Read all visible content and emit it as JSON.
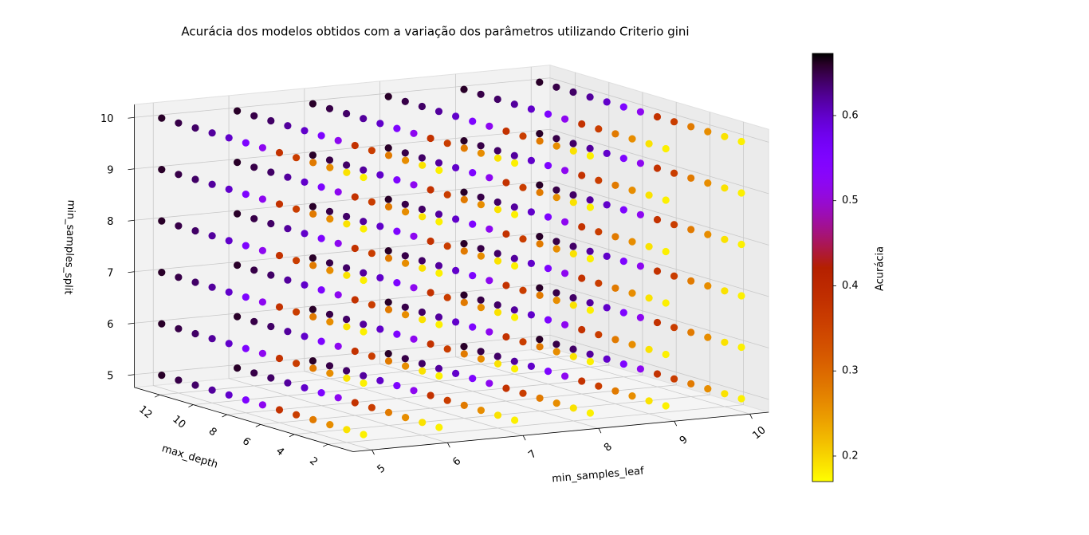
{
  "chart_data": {
    "type": "scatter3d",
    "title": "Acurácia dos modelos obtidos com a variação dos parâmetros utilizando Criterio gini",
    "xlabel": "min_samples_leaf",
    "ylabel": "max_depth",
    "zlabel": "min_samples_split",
    "colorbar_label": "Acurácia",
    "colormap": "gnuplot_r",
    "x": [
      5,
      6,
      7,
      8,
      9,
      10
    ],
    "y": [
      1,
      2,
      3,
      4,
      5,
      6,
      7,
      8,
      9,
      10,
      11,
      12,
      13
    ],
    "z": [
      5,
      6,
      7,
      8,
      9,
      10
    ],
    "xlim": [
      4.75,
      10.25
    ],
    "ylim": [
      0.5,
      13.5
    ],
    "zlim": [
      4.75,
      10.25
    ],
    "xticks": [
      5,
      6,
      7,
      8,
      9,
      10
    ],
    "yticks": [
      2,
      4,
      6,
      8,
      10,
      12
    ],
    "zticks": [
      5,
      6,
      7,
      8,
      9,
      10
    ],
    "clim": [
      0.17,
      0.673
    ],
    "cticks": [
      0.2,
      0.3,
      0.4,
      0.5,
      0.6
    ],
    "grid": true,
    "values": [
      [
        [
          0.18,
          0.19,
          0.26,
          0.28,
          0.36,
          0.38,
          0.52,
          0.55,
          0.6,
          0.62,
          0.64,
          0.65,
          0.66
        ],
        [
          0.18,
          0.19,
          0.26,
          0.28,
          0.36,
          0.38,
          0.52,
          0.55,
          0.6,
          0.62,
          0.64,
          0.65,
          0.66
        ],
        [
          0.18,
          0.19,
          0.26,
          0.28,
          0.36,
          0.38,
          0.52,
          0.55,
          0.6,
          0.62,
          0.64,
          0.65,
          0.66
        ],
        [
          0.18,
          0.19,
          0.26,
          0.28,
          0.36,
          0.38,
          0.52,
          0.55,
          0.6,
          0.62,
          0.64,
          0.65,
          0.66
        ],
        [
          0.18,
          0.19,
          0.26,
          0.28,
          0.36,
          0.38,
          0.52,
          0.55,
          0.6,
          0.62,
          0.64,
          0.65,
          0.66
        ],
        [
          0.18,
          0.19,
          0.26,
          0.28,
          0.36,
          0.38,
          0.52,
          0.55,
          0.6,
          0.62,
          0.64,
          0.65,
          0.66
        ]
      ],
      [
        [
          0.18,
          0.19,
          0.26,
          0.28,
          0.36,
          0.38,
          0.52,
          0.55,
          0.6,
          0.62,
          0.64,
          0.65,
          0.66
        ],
        [
          0.18,
          0.19,
          0.26,
          0.28,
          0.36,
          0.38,
          0.52,
          0.55,
          0.6,
          0.62,
          0.64,
          0.65,
          0.66
        ],
        [
          0.18,
          0.19,
          0.26,
          0.28,
          0.36,
          0.38,
          0.52,
          0.55,
          0.6,
          0.62,
          0.64,
          0.65,
          0.66
        ],
        [
          0.18,
          0.19,
          0.26,
          0.28,
          0.36,
          0.38,
          0.52,
          0.55,
          0.6,
          0.62,
          0.64,
          0.65,
          0.66
        ],
        [
          0.18,
          0.19,
          0.26,
          0.28,
          0.36,
          0.38,
          0.52,
          0.55,
          0.6,
          0.62,
          0.64,
          0.65,
          0.66
        ],
        [
          0.18,
          0.19,
          0.26,
          0.28,
          0.36,
          0.38,
          0.52,
          0.55,
          0.6,
          0.62,
          0.64,
          0.65,
          0.66
        ]
      ],
      [
        [
          0.18,
          0.19,
          0.26,
          0.28,
          0.36,
          0.38,
          0.52,
          0.55,
          0.6,
          0.62,
          0.64,
          0.65,
          0.66
        ],
        [
          0.18,
          0.19,
          0.26,
          0.28,
          0.36,
          0.38,
          0.52,
          0.55,
          0.6,
          0.62,
          0.64,
          0.65,
          0.66
        ],
        [
          0.18,
          0.19,
          0.26,
          0.28,
          0.36,
          0.38,
          0.52,
          0.55,
          0.6,
          0.62,
          0.64,
          0.65,
          0.66
        ],
        [
          0.18,
          0.19,
          0.26,
          0.28,
          0.36,
          0.38,
          0.52,
          0.55,
          0.6,
          0.62,
          0.64,
          0.65,
          0.66
        ],
        [
          0.18,
          0.19,
          0.26,
          0.28,
          0.36,
          0.38,
          0.52,
          0.55,
          0.6,
          0.62,
          0.64,
          0.65,
          0.66
        ],
        [
          0.18,
          0.19,
          0.26,
          0.28,
          0.36,
          0.38,
          0.52,
          0.55,
          0.6,
          0.62,
          0.64,
          0.65,
          0.66
        ]
      ],
      [
        [
          0.18,
          0.19,
          0.26,
          0.28,
          0.36,
          0.38,
          0.52,
          0.55,
          0.6,
          0.62,
          0.64,
          0.65,
          0.66
        ],
        [
          0.18,
          0.19,
          0.26,
          0.28,
          0.36,
          0.38,
          0.52,
          0.55,
          0.6,
          0.62,
          0.64,
          0.65,
          0.66
        ],
        [
          0.18,
          0.19,
          0.26,
          0.28,
          0.36,
          0.38,
          0.52,
          0.55,
          0.6,
          0.62,
          0.64,
          0.65,
          0.66
        ],
        [
          0.18,
          0.19,
          0.26,
          0.28,
          0.36,
          0.38,
          0.52,
          0.55,
          0.6,
          0.62,
          0.64,
          0.65,
          0.66
        ],
        [
          0.18,
          0.19,
          0.26,
          0.28,
          0.36,
          0.38,
          0.52,
          0.55,
          0.6,
          0.62,
          0.64,
          0.65,
          0.66
        ],
        [
          0.18,
          0.19,
          0.26,
          0.28,
          0.36,
          0.38,
          0.52,
          0.55,
          0.6,
          0.62,
          0.64,
          0.65,
          0.66
        ]
      ],
      [
        [
          0.18,
          0.19,
          0.26,
          0.28,
          0.36,
          0.38,
          0.52,
          0.55,
          0.6,
          0.62,
          0.64,
          0.65,
          0.66
        ],
        [
          0.18,
          0.19,
          0.26,
          0.28,
          0.36,
          0.38,
          0.52,
          0.55,
          0.6,
          0.62,
          0.64,
          0.65,
          0.66
        ],
        [
          0.18,
          0.19,
          0.26,
          0.28,
          0.36,
          0.38,
          0.52,
          0.55,
          0.6,
          0.62,
          0.64,
          0.65,
          0.66
        ],
        [
          0.18,
          0.19,
          0.26,
          0.28,
          0.36,
          0.38,
          0.52,
          0.55,
          0.6,
          0.62,
          0.64,
          0.65,
          0.66
        ],
        [
          0.18,
          0.19,
          0.26,
          0.28,
          0.36,
          0.38,
          0.52,
          0.55,
          0.6,
          0.62,
          0.64,
          0.65,
          0.66
        ],
        [
          0.18,
          0.19,
          0.26,
          0.28,
          0.36,
          0.38,
          0.52,
          0.55,
          0.6,
          0.62,
          0.64,
          0.65,
          0.66
        ]
      ],
      [
        [
          0.18,
          0.19,
          0.26,
          0.28,
          0.36,
          0.38,
          0.52,
          0.55,
          0.6,
          0.62,
          0.64,
          0.65,
          0.66
        ],
        [
          0.18,
          0.19,
          0.26,
          0.28,
          0.36,
          0.38,
          0.52,
          0.55,
          0.6,
          0.62,
          0.64,
          0.65,
          0.66
        ],
        [
          0.18,
          0.19,
          0.26,
          0.28,
          0.36,
          0.38,
          0.52,
          0.55,
          0.6,
          0.62,
          0.64,
          0.65,
          0.66
        ],
        [
          0.18,
          0.19,
          0.26,
          0.28,
          0.36,
          0.38,
          0.52,
          0.55,
          0.6,
          0.62,
          0.64,
          0.65,
          0.66
        ],
        [
          0.18,
          0.19,
          0.26,
          0.28,
          0.36,
          0.38,
          0.52,
          0.55,
          0.6,
          0.62,
          0.64,
          0.65,
          0.66
        ],
        [
          0.18,
          0.19,
          0.26,
          0.28,
          0.36,
          0.38,
          0.52,
          0.55,
          0.6,
          0.62,
          0.64,
          0.65,
          0.66
        ]
      ]
    ]
  }
}
